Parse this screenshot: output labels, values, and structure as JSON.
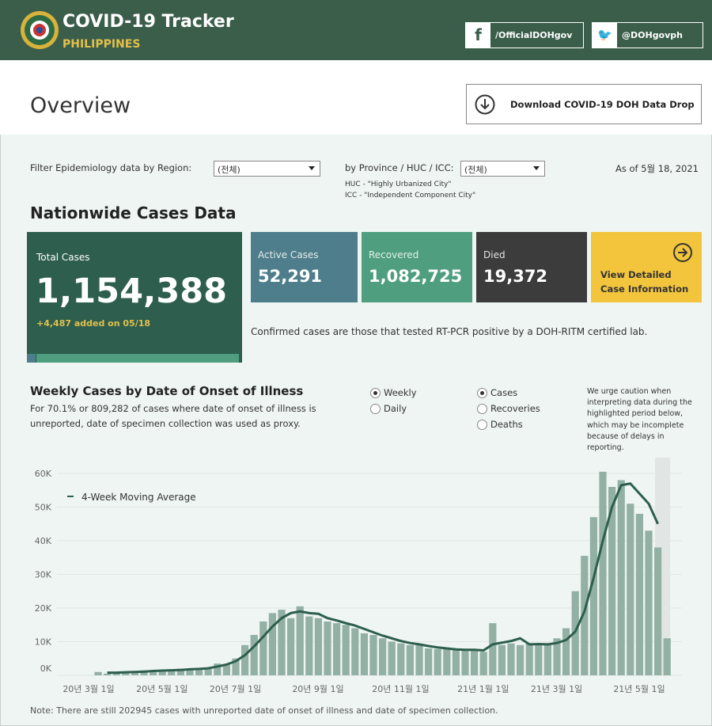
{
  "header": {
    "title": "COVID-19 Tracker",
    "subtitle": "PHILIPPINES",
    "facebook": "/OfficialDOHgov",
    "twitter": "@DOHgovph"
  },
  "overview": {
    "title": "Overview",
    "download": "Download COVID-19 DOH Data Drop"
  },
  "filters": {
    "region_label": "Filter Epidemiology data by Region:",
    "region_value": "(전체)",
    "province_label": "by Province / HUC / ICC:",
    "province_value": "(전체)",
    "huc_note": "HUC - \"Highly Urbanized City\"",
    "icc_note": "ICC - \"Independent Component City\"",
    "as_of": "As of 5월 18, 2021"
  },
  "nationwide": {
    "title": "Nationwide Cases Data",
    "total": {
      "label": "Total Cases",
      "value": "1,154,388",
      "added": "+4,487 added on 05/18"
    },
    "active": {
      "label": "Active Cases",
      "value": "52,291"
    },
    "recovered": {
      "label": "Recovered",
      "value": "1,082,725"
    },
    "died": {
      "label": "Died",
      "value": "19,372"
    },
    "detail": [
      "View Detailed",
      "Case Information"
    ],
    "note": "Confirmed cases are those that tested RT-PCR positive by a DOH-RITM certified lab."
  },
  "weekly": {
    "title": "Weekly Cases by Date of Onset of Illness",
    "description": [
      "For 70.1% or 809,282 of cases where date of onset of illness is",
      "unreported, date of specimen collection was used as proxy."
    ],
    "period_options": [
      "Weekly",
      "Daily"
    ],
    "period_selected": 0,
    "metric_options": [
      "Cases",
      "Recoveries",
      "Deaths"
    ],
    "metric_selected": 0,
    "caution": [
      "We urge caution when",
      "interpreting data during the",
      "highlighted period below,",
      "which may be incomplete",
      "because of delays in",
      "reporting."
    ]
  },
  "chart_data": {
    "type": "bar",
    "color": "#93b0a5",
    "categories": [
      "20년 3월 1일",
      null,
      null,
      null,
      null,
      null,
      null,
      null,
      "20년 5월 1일",
      null,
      null,
      null,
      null,
      null,
      null,
      null,
      "20년 7월 1일",
      null,
      null,
      null,
      null,
      null,
      null,
      null,
      null,
      "20년 9월 1일",
      null,
      null,
      null,
      null,
      null,
      null,
      null,
      null,
      "20년 11월 1일",
      null,
      null,
      null,
      null,
      null,
      null,
      null,
      null,
      "21년 1월 1일",
      null,
      null,
      null,
      null,
      null,
      null,
      null,
      "21년 3월 1일",
      null,
      null,
      null,
      null,
      null,
      null,
      null,
      null,
      "21년 5월 1일",
      null,
      null
    ],
    "values": [
      1000,
      500,
      600,
      800,
      1000,
      1500,
      1200,
      1300,
      1500,
      2000,
      1700,
      2000,
      2300,
      3500,
      3200,
      5000,
      9000,
      12000,
      16000,
      18500,
      19500,
      17000,
      20500,
      17500,
      17000,
      16000,
      15500,
      15000,
      14000,
      12500,
      12000,
      11000,
      10000,
      9500,
      9000,
      9000,
      8000,
      7800,
      8000,
      7800,
      7500,
      7800,
      7000,
      15500,
      9000,
      9500,
      9000,
      9500,
      9500,
      9500,
      11000,
      14000,
      25000,
      35500,
      47000,
      60500,
      56000,
      58000,
      51000,
      48000,
      43000,
      38000,
      11000
    ],
    "moving_average": {
      "name": "4-Week Moving Average",
      "color": "#2d5e4e",
      "values": [
        null,
        800,
        800,
        900,
        1000,
        1100,
        1300,
        1400,
        1500,
        1600,
        1800,
        1900,
        2100,
        2600,
        3200,
        4200,
        6000,
        8600,
        11500,
        14500,
        17000,
        18500,
        19000,
        18500,
        18300,
        17000,
        16300,
        15500,
        14800,
        13800,
        12800,
        11800,
        11000,
        10200,
        9600,
        9200,
        8700,
        8300,
        8000,
        7700,
        7600,
        7600,
        7400,
        9200,
        9700,
        10200,
        11000,
        9200,
        9300,
        9200,
        9600,
        10500,
        13000,
        19000,
        29000,
        40000,
        50000,
        56500,
        57000,
        54000,
        51000,
        45000,
        null
      ]
    },
    "ylim": [
      0,
      60000
    ],
    "yticks": [
      {
        "value": 0,
        "label": "0K"
      },
      {
        "value": 10000,
        "label": "10K"
      },
      {
        "value": 20000,
        "label": "20K"
      },
      {
        "value": 30000,
        "label": "30K"
      },
      {
        "value": 40000,
        "label": "40K"
      },
      {
        "value": 50000,
        "label": "50K"
      },
      {
        "value": 60000,
        "label": "60K"
      }
    ],
    "grid": true
  },
  "footnote": "Note: There are still 202945 cases with unreported date of onset of illness and date of specimen collection."
}
